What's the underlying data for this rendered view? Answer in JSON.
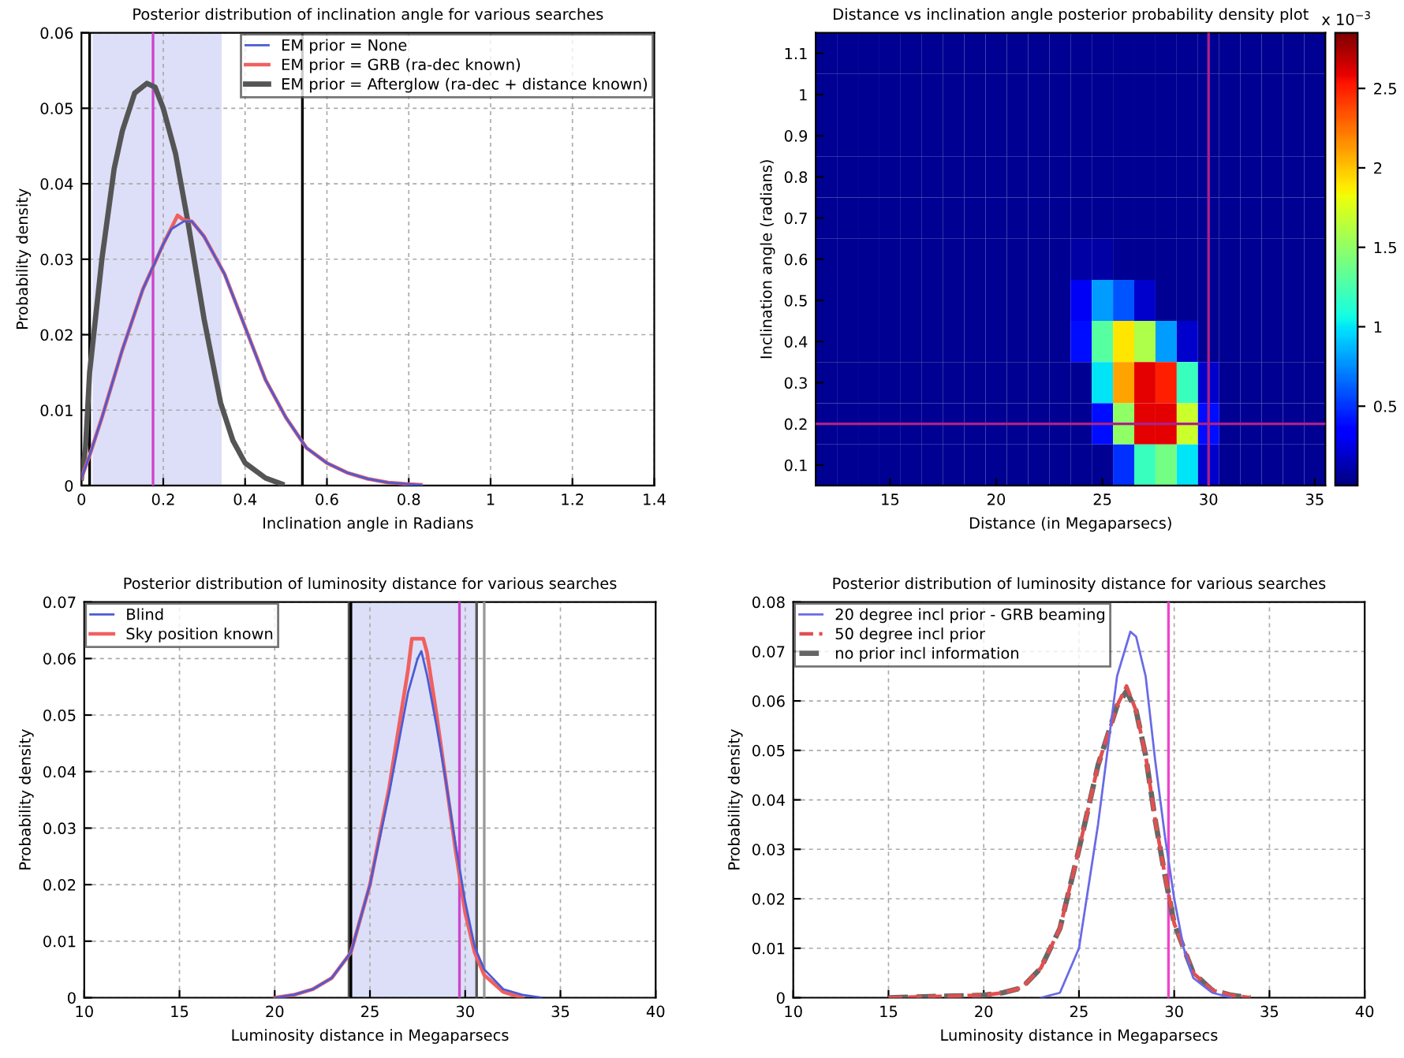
{
  "chart_data": [
    {
      "type": "line",
      "title": "Posterior distribution of inclination angle for various searches",
      "xlabel": "Inclination angle in Radians",
      "ylabel": "Probability density",
      "xlim": [
        0,
        1.4
      ],
      "ylim": [
        0,
        0.06
      ],
      "xticks": [
        0,
        0.2,
        0.4,
        0.6,
        0.8,
        1,
        1.2,
        1.4
      ],
      "yticks": [
        0,
        0.01,
        0.02,
        0.03,
        0.04,
        0.05,
        0.06
      ],
      "grid": true,
      "legend": "top right",
      "bands": [
        {
          "axis": "x",
          "from": 0.03,
          "to": 0.34,
          "color": "#dcdff7"
        }
      ],
      "ref_lines": [
        {
          "axis": "x",
          "value": 0.02,
          "color": "#000000"
        },
        {
          "axis": "x",
          "value": 0.175,
          "color": "#cc44cc"
        },
        {
          "axis": "x",
          "value": 0.54,
          "color": "#000000"
        }
      ],
      "series": [
        {
          "name": "EM prior = None",
          "color": "#4a5bd6",
          "x": [
            0,
            0.02,
            0.05,
            0.1,
            0.15,
            0.2,
            0.22,
            0.25,
            0.27,
            0.3,
            0.35,
            0.4,
            0.45,
            0.5,
            0.55,
            0.6,
            0.65,
            0.7,
            0.75,
            0.8,
            0.83
          ],
          "values": [
            0.001,
            0.004,
            0.009,
            0.018,
            0.026,
            0.032,
            0.034,
            0.035,
            0.035,
            0.033,
            0.028,
            0.021,
            0.014,
            0.009,
            0.005,
            0.003,
            0.0017,
            0.0009,
            0.0004,
            0.0002,
            0.0001
          ]
        },
        {
          "name": "EM prior = GRB (ra-dec known)",
          "color": "#f06060",
          "x": [
            0,
            0.02,
            0.05,
            0.1,
            0.15,
            0.2,
            0.235,
            0.25,
            0.27,
            0.3,
            0.35,
            0.4,
            0.45,
            0.5,
            0.55,
            0.6,
            0.65,
            0.7,
            0.75,
            0.8,
            0.83
          ],
          "values": [
            0.001,
            0.004,
            0.009,
            0.018,
            0.026,
            0.032,
            0.0358,
            0.0352,
            0.035,
            0.033,
            0.028,
            0.021,
            0.014,
            0.009,
            0.005,
            0.003,
            0.0017,
            0.0009,
            0.0004,
            0.0002,
            0.0001
          ]
        },
        {
          "name": "EM prior = Afterglow (ra-dec + distance known)",
          "color": "#555555",
          "x": [
            0,
            0.01,
            0.02,
            0.05,
            0.08,
            0.1,
            0.13,
            0.16,
            0.18,
            0.2,
            0.23,
            0.26,
            0.3,
            0.34,
            0.37,
            0.4,
            0.45,
            0.49
          ],
          "values": [
            0.001,
            0.005,
            0.015,
            0.03,
            0.042,
            0.047,
            0.052,
            0.0533,
            0.0528,
            0.05,
            0.044,
            0.035,
            0.022,
            0.011,
            0.006,
            0.003,
            0.001,
            0.0002
          ]
        }
      ]
    },
    {
      "type": "heatmap",
      "title": "Distance vs inclination angle posterior probability density plot",
      "xlabel": "Distance (in Megaparsecs)",
      "ylabel": "Inclination angle (radians)",
      "clabel": "x 10$^{−3}$",
      "clim": [
        0,
        2.85
      ],
      "cticks": [
        0.5,
        1,
        1.5,
        2,
        2.5
      ],
      "ref_lines": [
        {
          "axis": "x",
          "value": "30",
          "color": "#aa2288"
        },
        {
          "axis": "y",
          "value": "0.2",
          "color": "#aa2288"
        }
      ],
      "categories": [
        null,
        null,
        null,
        "15",
        null,
        null,
        null,
        null,
        "20",
        null,
        null,
        null,
        null,
        "25",
        null,
        null,
        null,
        null,
        "30",
        null,
        null,
        null,
        null,
        "35"
      ],
      "y_categories": [
        "1.1",
        "1",
        "0.9",
        "0.8",
        "0.7",
        "0.6",
        "0.5",
        "0.4",
        "0.3",
        "0.2",
        "0.1"
      ],
      "cells": [
        [
          0.05,
          0.05,
          0.05,
          0.05,
          0.05,
          0.05,
          0.05,
          0.05,
          0.05,
          0.05,
          0.05,
          0.05,
          0.05,
          0.05,
          0.05,
          0.05,
          0.05,
          0.05,
          0.05,
          0.05,
          0.05,
          0.05,
          0.05,
          0.05
        ],
        [
          0.05,
          0.05,
          0.05,
          0.05,
          0.05,
          0.05,
          0.05,
          0.05,
          0.05,
          0.05,
          0.05,
          0.05,
          0.05,
          0.05,
          0.05,
          0.05,
          0.05,
          0.05,
          0.05,
          0.05,
          0.05,
          0.05,
          0.05,
          0.05
        ],
        [
          0.05,
          0.05,
          0.05,
          0.05,
          0.05,
          0.05,
          0.05,
          0.05,
          0.05,
          0.05,
          0.05,
          0.05,
          0.05,
          0.05,
          0.05,
          0.05,
          0.05,
          0.05,
          0.05,
          0.05,
          0.05,
          0.05,
          0.05,
          0.05
        ],
        [
          0.05,
          0.05,
          0.05,
          0.05,
          0.05,
          0.05,
          0.05,
          0.05,
          0.05,
          0.05,
          0.05,
          0.05,
          0.05,
          0.05,
          0.05,
          0.05,
          0.05,
          0.05,
          0.05,
          0.05,
          0.05,
          0.05,
          0.05,
          0.05
        ],
        [
          0.05,
          0.05,
          0.05,
          0.05,
          0.05,
          0.05,
          0.05,
          0.05,
          0.05,
          0.05,
          0.05,
          0.05,
          0.05,
          0.05,
          0.05,
          0.05,
          0.05,
          0.05,
          0.05,
          0.05,
          0.05,
          0.05,
          0.05,
          0.05
        ],
        [
          0.05,
          0.05,
          0.05,
          0.05,
          0.05,
          0.05,
          0.05,
          0.05,
          0.05,
          0.05,
          0.05,
          0.05,
          0.1,
          0.1,
          0.05,
          0.05,
          0.05,
          0.05,
          0.05,
          0.05,
          0.05,
          0.05,
          0.05,
          0.05
        ],
        [
          0.05,
          0.05,
          0.05,
          0.05,
          0.05,
          0.05,
          0.05,
          0.05,
          0.05,
          0.05,
          0.05,
          0.05,
          0.3,
          0.8,
          0.6,
          0.2,
          0.05,
          0.05,
          0.05,
          0.05,
          0.05,
          0.05,
          0.05,
          0.05
        ],
        [
          0.05,
          0.05,
          0.05,
          0.05,
          0.05,
          0.05,
          0.05,
          0.05,
          0.05,
          0.05,
          0.05,
          0.05,
          0.4,
          1.3,
          1.9,
          1.6,
          0.8,
          0.2,
          0.05,
          0.05,
          0.05,
          0.05,
          0.05,
          0.05
        ],
        [
          0.05,
          0.05,
          0.05,
          0.05,
          0.05,
          0.05,
          0.05,
          0.05,
          0.05,
          0.05,
          0.05,
          0.05,
          0.05,
          1.0,
          2.1,
          2.6,
          2.5,
          1.2,
          0.2,
          0.05,
          0.05,
          0.05,
          0.05,
          0.05
        ],
        [
          0.05,
          0.05,
          0.05,
          0.05,
          0.05,
          0.05,
          0.05,
          0.05,
          0.05,
          0.05,
          0.05,
          0.05,
          0.05,
          0.4,
          1.5,
          2.6,
          2.6,
          1.7,
          0.4,
          0.05,
          0.05,
          0.05,
          0.05,
          0.05
        ],
        [
          0.05,
          0.05,
          0.05,
          0.05,
          0.05,
          0.05,
          0.05,
          0.05,
          0.05,
          0.05,
          0.05,
          0.05,
          0.05,
          0.05,
          0.5,
          1.2,
          1.4,
          1.0,
          0.2,
          0.05,
          0.05,
          0.05,
          0.05,
          0.05
        ]
      ]
    },
    {
      "type": "line",
      "title": "Posterior distribution of luminosity distance for various searches",
      "xlabel": "Luminosity distance in Megaparsecs",
      "ylabel": "Probability density",
      "xlim": [
        10,
        40
      ],
      "ylim": [
        0,
        0.07
      ],
      "xticks": [
        10,
        15,
        20,
        25,
        30,
        35,
        40
      ],
      "yticks": [
        0,
        0.01,
        0.02,
        0.03,
        0.04,
        0.05,
        0.06,
        0.07
      ],
      "grid": true,
      "legend": "top left",
      "bands": [
        {
          "axis": "x",
          "from": 24.0,
          "to": 30.6,
          "color": "#dcdff7"
        }
      ],
      "ref_lines": [
        {
          "axis": "x",
          "value": 23.9,
          "color": "#555555"
        },
        {
          "axis": "x",
          "value": 24.0,
          "color": "#000000"
        },
        {
          "axis": "x",
          "value": 29.7,
          "color": "#cc44cc"
        },
        {
          "axis": "x",
          "value": 30.6,
          "color": "#555555"
        },
        {
          "axis": "x",
          "value": 31.0,
          "color": "#999999"
        }
      ],
      "series": [
        {
          "name": "Blind",
          "color": "#4a5bd6",
          "x": [
            20,
            21,
            22,
            23,
            24,
            25,
            26,
            27,
            27.5,
            27.7,
            28,
            28.5,
            29,
            29.5,
            30,
            30.5,
            31,
            32,
            33,
            34
          ],
          "values": [
            0,
            0.0005,
            0.0015,
            0.0035,
            0.008,
            0.02,
            0.036,
            0.054,
            0.06,
            0.0613,
            0.057,
            0.048,
            0.038,
            0.027,
            0.017,
            0.009,
            0.005,
            0.0015,
            0.0005,
            0
          ]
        },
        {
          "name": "Sky position known",
          "color": "#f06060",
          "x": [
            20,
            21,
            22,
            23,
            24,
            25,
            26,
            27,
            27.2,
            27.8,
            28,
            28.5,
            29,
            29.5,
            30,
            30.5,
            31,
            32,
            33
          ],
          "values": [
            0,
            0.0005,
            0.0015,
            0.0035,
            0.008,
            0.02,
            0.037,
            0.058,
            0.0635,
            0.0635,
            0.061,
            0.05,
            0.038,
            0.026,
            0.015,
            0.008,
            0.004,
            0.001,
            0
          ]
        }
      ]
    },
    {
      "type": "line",
      "title": "Posterior distribution of luminosity distance for various searches",
      "xlabel": "Luminosity distance in Megaparsecs",
      "ylabel": "Probability density",
      "xlim": [
        10,
        40
      ],
      "ylim": [
        0,
        0.08
      ],
      "xticks": [
        10,
        15,
        20,
        25,
        30,
        35,
        40
      ],
      "yticks": [
        0,
        0.01,
        0.02,
        0.03,
        0.04,
        0.05,
        0.06,
        0.07,
        0.08
      ],
      "grid": true,
      "legend": "top left",
      "ref_lines": [
        {
          "axis": "x",
          "value": 29.7,
          "color": "#ee44cc"
        }
      ],
      "series": [
        {
          "name": "20 degree incl prior - GRB beaming",
          "color": "#6a6ae8",
          "line_style": "solid",
          "x": [
            23,
            24,
            25,
            26,
            27,
            27.7,
            28,
            28.5,
            29,
            29.5,
            30,
            30.5,
            31,
            32,
            33
          ],
          "values": [
            0,
            0.001,
            0.01,
            0.035,
            0.065,
            0.074,
            0.073,
            0.065,
            0.048,
            0.033,
            0.02,
            0.01,
            0.004,
            0.001,
            0
          ]
        },
        {
          "name": "50 degree incl prior",
          "color": "#e05050",
          "line_style": "dashed",
          "x": [
            15,
            20,
            21,
            22,
            23,
            24,
            25,
            26,
            27,
            27.5,
            28,
            28.5,
            29,
            29.5,
            30,
            31,
            32,
            33,
            34
          ],
          "values": [
            0,
            0.0005,
            0.001,
            0.002,
            0.006,
            0.014,
            0.03,
            0.047,
            0.059,
            0.063,
            0.058,
            0.049,
            0.036,
            0.025,
            0.015,
            0.005,
            0.0015,
            0.0005,
            0
          ]
        },
        {
          "name": "no prior incl information",
          "color": "#666666",
          "line_style": "dashed",
          "x": [
            15,
            20,
            21,
            22,
            23,
            24,
            25,
            26,
            27,
            27.5,
            28,
            28.5,
            29,
            29.5,
            30,
            31,
            32,
            33,
            34
          ],
          "values": [
            0,
            0.0005,
            0.001,
            0.002,
            0.006,
            0.014,
            0.03,
            0.047,
            0.059,
            0.062,
            0.058,
            0.049,
            0.036,
            0.025,
            0.015,
            0.005,
            0.0015,
            0.0005,
            0
          ]
        }
      ]
    }
  ]
}
